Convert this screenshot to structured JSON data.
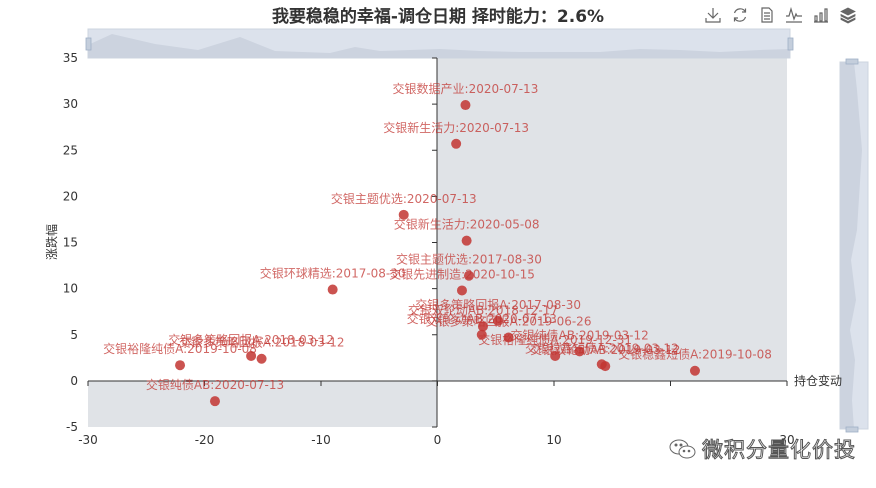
{
  "title": "我要稳稳的幸福-调仓日期 择时能力：2.6%",
  "toolbox": [
    {
      "name": "save-as-image",
      "icon": "download-icon"
    },
    {
      "name": "restore",
      "icon": "refresh-icon"
    },
    {
      "name": "data-view",
      "icon": "document-icon"
    },
    {
      "name": "line-chart",
      "icon": "line-chart-icon"
    },
    {
      "name": "bar-chart",
      "icon": "bar-chart-icon"
    },
    {
      "name": "stack",
      "icon": "stack-icon"
    }
  ],
  "watermark": "微积分量化价投",
  "colors": {
    "point": "#c23531",
    "quadrant_fill": "#e0e3e7",
    "datazoom_fill": "#d2dbe8",
    "axis": "#333333"
  },
  "chart_data": {
    "type": "scatter",
    "title": "我要稳稳的幸福-调仓日期 择时能力：2.6%",
    "xlabel": "持仓变动",
    "ylabel": "涨跌幅",
    "xlim": [
      -30,
      30
    ],
    "ylim": [
      -5,
      35
    ],
    "x_ticks": [
      "-30",
      "-20",
      "-10",
      "0",
      "10",
      "30"
    ],
    "y_ticks": [
      "-5",
      "0",
      "5",
      "10",
      "15",
      "20",
      "25",
      "30",
      "35"
    ],
    "grid": false,
    "quadrant_shading": [
      "x>0,y>0",
      "x<0,y<0"
    ],
    "datazoom": {
      "x_slider": "top",
      "y_slider": "right"
    },
    "points": [
      {
        "label": "交银数据产业:2020-07-13",
        "x": 2.4,
        "y": 29.9
      },
      {
        "label": "交银新生活力:2020-07-13",
        "x": 1.6,
        "y": 25.7
      },
      {
        "label": "交银主题优选:2020-07-13",
        "x": -2.9,
        "y": 18.0
      },
      {
        "label": "交银新生活力:2020-05-08",
        "x": 2.5,
        "y": 15.2
      },
      {
        "label": "交银主题优选:2017-08-30",
        "x": 2.7,
        "y": 11.4
      },
      {
        "label": "交银先进制造:2020-10-15",
        "x": 2.1,
        "y": 9.8
      },
      {
        "label": "交银环球精选:2017-08-30",
        "x": -9.0,
        "y": 9.9
      },
      {
        "label": "交银多策略回报A:2017-08-30",
        "x": 5.2,
        "y": 6.5
      },
      {
        "label": "交银双轮动AB:2018-12-17",
        "x": 3.9,
        "y": 5.9
      },
      {
        "label": "交银双轮动AB:2020-07-13",
        "x": 3.8,
        "y": 5.0
      },
      {
        "label": "交银多策略回报A:2019-06-26",
        "x": 6.1,
        "y": 4.7
      },
      {
        "label": "交银裕隆纯债A:2019-12-31",
        "x": 10.1,
        "y": 2.7
      },
      {
        "label": "交银纯债AB:2019-03-12",
        "x": 12.2,
        "y": 3.2
      },
      {
        "label": "交银稳鑫短债A:2019-03-12",
        "x": 14.1,
        "y": 1.8
      },
      {
        "label": "交银双轮动AB:2019-03-12",
        "x": 14.4,
        "y": 1.6
      },
      {
        "label": "交银稳鑫短债A:2019-10-08",
        "x": 22.1,
        "y": 1.1
      },
      {
        "label": "交银多策略回报A:2018-03-12",
        "x": -16.0,
        "y": 2.7
      },
      {
        "label": "交银多策略回报A:2018-03-12",
        "x": -15.1,
        "y": 2.4
      },
      {
        "label": "交银裕隆纯债A:2019-10-08",
        "x": -22.1,
        "y": 1.7
      },
      {
        "label": "交银纯债AB:2020-07-13",
        "x": -19.1,
        "y": -2.2
      }
    ]
  }
}
